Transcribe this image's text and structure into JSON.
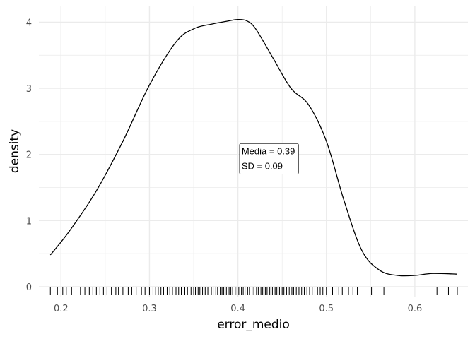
{
  "chart_data": {
    "type": "area",
    "subtype": "density-with-rug",
    "xlabel": "error_medio",
    "ylabel": "density",
    "xlim": [
      0.175,
      0.66
    ],
    "ylim": [
      -0.15,
      4.25
    ],
    "x_ticks": [
      0.2,
      0.3,
      0.4,
      0.5,
      0.6
    ],
    "x_tick_labels": [
      "0.2",
      "0.3",
      "0.4",
      "0.5",
      "0.6"
    ],
    "y_ticks": [
      0,
      1,
      2,
      3,
      4
    ],
    "y_tick_labels": [
      "0",
      "1",
      "2",
      "3",
      "4"
    ],
    "grid": true,
    "legend": "none",
    "density": {
      "x": [
        0.188,
        0.21,
        0.24,
        0.27,
        0.3,
        0.33,
        0.35,
        0.37,
        0.39,
        0.4,
        0.41,
        0.42,
        0.44,
        0.46,
        0.48,
        0.5,
        0.52,
        0.54,
        0.56,
        0.58,
        0.6,
        0.62,
        0.648
      ],
      "y": [
        0.48,
        0.85,
        1.45,
        2.2,
        3.05,
        3.7,
        3.9,
        3.97,
        4.02,
        4.04,
        4.02,
        3.9,
        3.45,
        3.0,
        2.75,
        2.2,
        1.3,
        0.55,
        0.25,
        0.17,
        0.17,
        0.2,
        0.19
      ]
    },
    "rug": [
      0.188,
      0.196,
      0.202,
      0.206,
      0.212,
      0.222,
      0.227,
      0.232,
      0.236,
      0.24,
      0.244,
      0.248,
      0.252,
      0.257,
      0.262,
      0.265,
      0.27,
      0.276,
      0.28,
      0.285,
      0.291,
      0.295,
      0.3,
      0.304,
      0.307,
      0.31,
      0.313,
      0.316,
      0.32,
      0.323,
      0.326,
      0.33,
      0.333,
      0.336,
      0.34,
      0.343,
      0.347,
      0.35,
      0.352,
      0.355,
      0.357,
      0.36,
      0.363,
      0.366,
      0.37,
      0.372,
      0.375,
      0.377,
      0.38,
      0.382,
      0.384,
      0.387,
      0.39,
      0.392,
      0.394,
      0.397,
      0.399,
      0.401,
      0.404,
      0.406,
      0.408,
      0.411,
      0.413,
      0.416,
      0.418,
      0.421,
      0.423,
      0.426,
      0.428,
      0.431,
      0.433,
      0.436,
      0.439,
      0.442,
      0.444,
      0.447,
      0.45,
      0.452,
      0.455,
      0.458,
      0.461,
      0.463,
      0.466,
      0.469,
      0.472,
      0.475,
      0.478,
      0.481,
      0.484,
      0.487,
      0.49,
      0.493,
      0.496,
      0.5,
      0.503,
      0.507,
      0.511,
      0.514,
      0.518,
      0.525,
      0.53,
      0.535,
      0.551,
      0.565,
      0.625,
      0.638,
      0.648
    ],
    "annotation": {
      "x": 0.405,
      "y": 1.95,
      "lines": [
        "Media = 0.39",
        "SD = 0.09"
      ]
    },
    "colors": {
      "line": "#000000",
      "grid": "#ebebeb",
      "background": "#ffffff"
    }
  }
}
